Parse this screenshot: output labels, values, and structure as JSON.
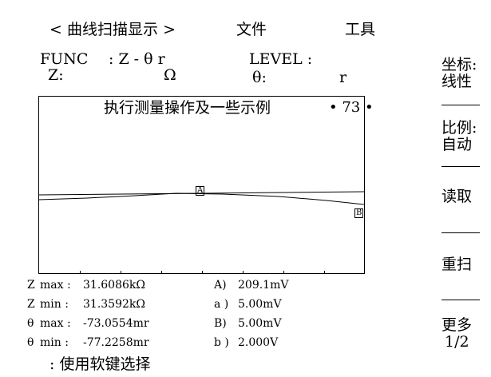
{
  "menu": {
    "title": "< 曲线扫描显示 >",
    "file": "文件",
    "tools": "工具"
  },
  "header": {
    "func_label": "FUNC",
    "func_value": ": Z - θ r",
    "level_label": "LEVEL :",
    "z_label": "Z:",
    "ohm_unit": "Ω",
    "theta_label": "θ:",
    "r_unit": "r"
  },
  "plot": {
    "status_text": "执行测量操作及一些示例",
    "scale_value": "• 73 •",
    "marker_a": "A",
    "marker_b": "B"
  },
  "stats": [
    {
      "symbol": "Z",
      "label": "max :",
      "value": "31.6086kΩ",
      "right_label": "A)",
      "right_value": "209.1mV"
    },
    {
      "symbol": "Z",
      "label": "min :",
      "value": "31.3592kΩ",
      "right_label": "a )",
      "right_value": "5.00mV"
    },
    {
      "symbol": "θ",
      "label": "max :",
      "value": "-73.0554mr",
      "right_label": "B)",
      "right_value": "5.00mV"
    },
    {
      "symbol": "θ",
      "label": "min :",
      "value": "-77.2258mr",
      "right_label": "b )",
      "right_value": "2.000V"
    }
  ],
  "footer": {
    "hint": ": 使用软键选择"
  },
  "softkeys": [
    {
      "line1": "坐标:",
      "line2": "线性"
    },
    {
      "line1": "比例:",
      "line2": "自动"
    },
    {
      "line1": "读取",
      "line2": ""
    },
    {
      "line1": "重扫",
      "line2": ""
    },
    {
      "line1": "更多",
      "line2": "1/2"
    }
  ]
}
